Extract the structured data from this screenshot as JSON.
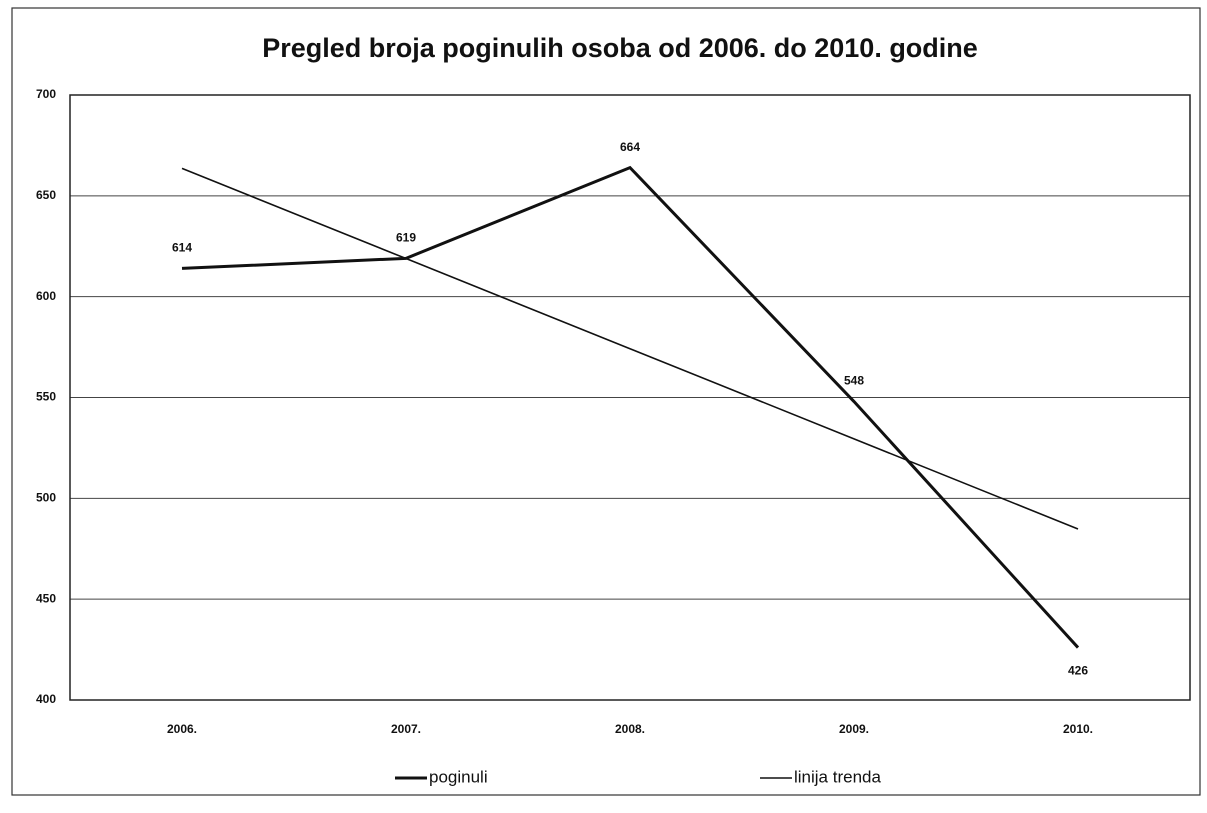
{
  "chart_data": {
    "type": "line",
    "title": "Pregled broja poginulih osoba od 2006. do 2010. godine",
    "categories": [
      "2006.",
      "2007.",
      "2008.",
      "2009.",
      "2010."
    ],
    "series": [
      {
        "name": "poginuli",
        "color": "#111111",
        "values": [
          614,
          619,
          664,
          548,
          426
        ]
      },
      {
        "name": "linija trenda",
        "color": "#111111",
        "values": [
          663.6,
          618.9,
          574.2,
          529.5,
          484.8
        ]
      }
    ],
    "ylim": [
      400,
      700
    ],
    "yticks": [
      400,
      450,
      500,
      550,
      600,
      650,
      700
    ],
    "grid": true,
    "legend": "bottom"
  }
}
